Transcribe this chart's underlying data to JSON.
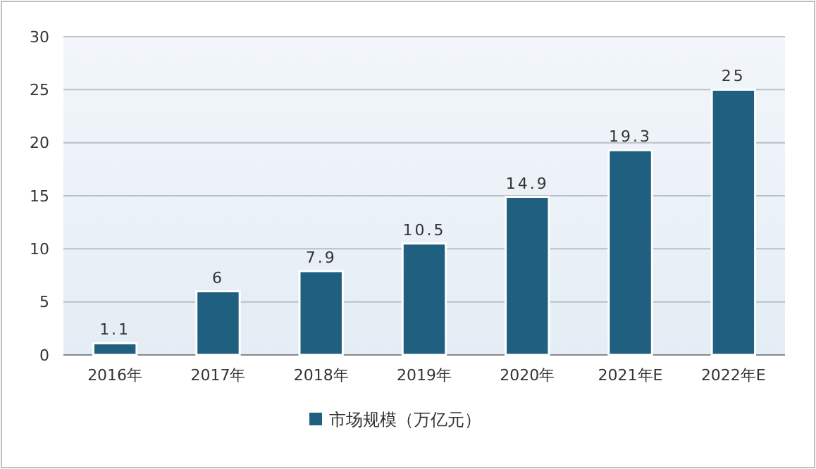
{
  "chart_data": {
    "type": "bar",
    "categories": [
      "2016年",
      "2017年",
      "2018年",
      "2019年",
      "2020年",
      "2021年E",
      "2022年E"
    ],
    "series": [
      {
        "name": "市场规模（万亿元）",
        "color": "#1f5f7f",
        "values": [
          1.1,
          6,
          7.9,
          10.5,
          14.9,
          19.3,
          25
        ]
      }
    ],
    "ylim": [
      0,
      30
    ],
    "yticks": [
      0,
      5,
      10,
      15,
      20,
      25,
      30
    ],
    "grid": "y",
    "legend": "bottom",
    "data_labels": true
  }
}
